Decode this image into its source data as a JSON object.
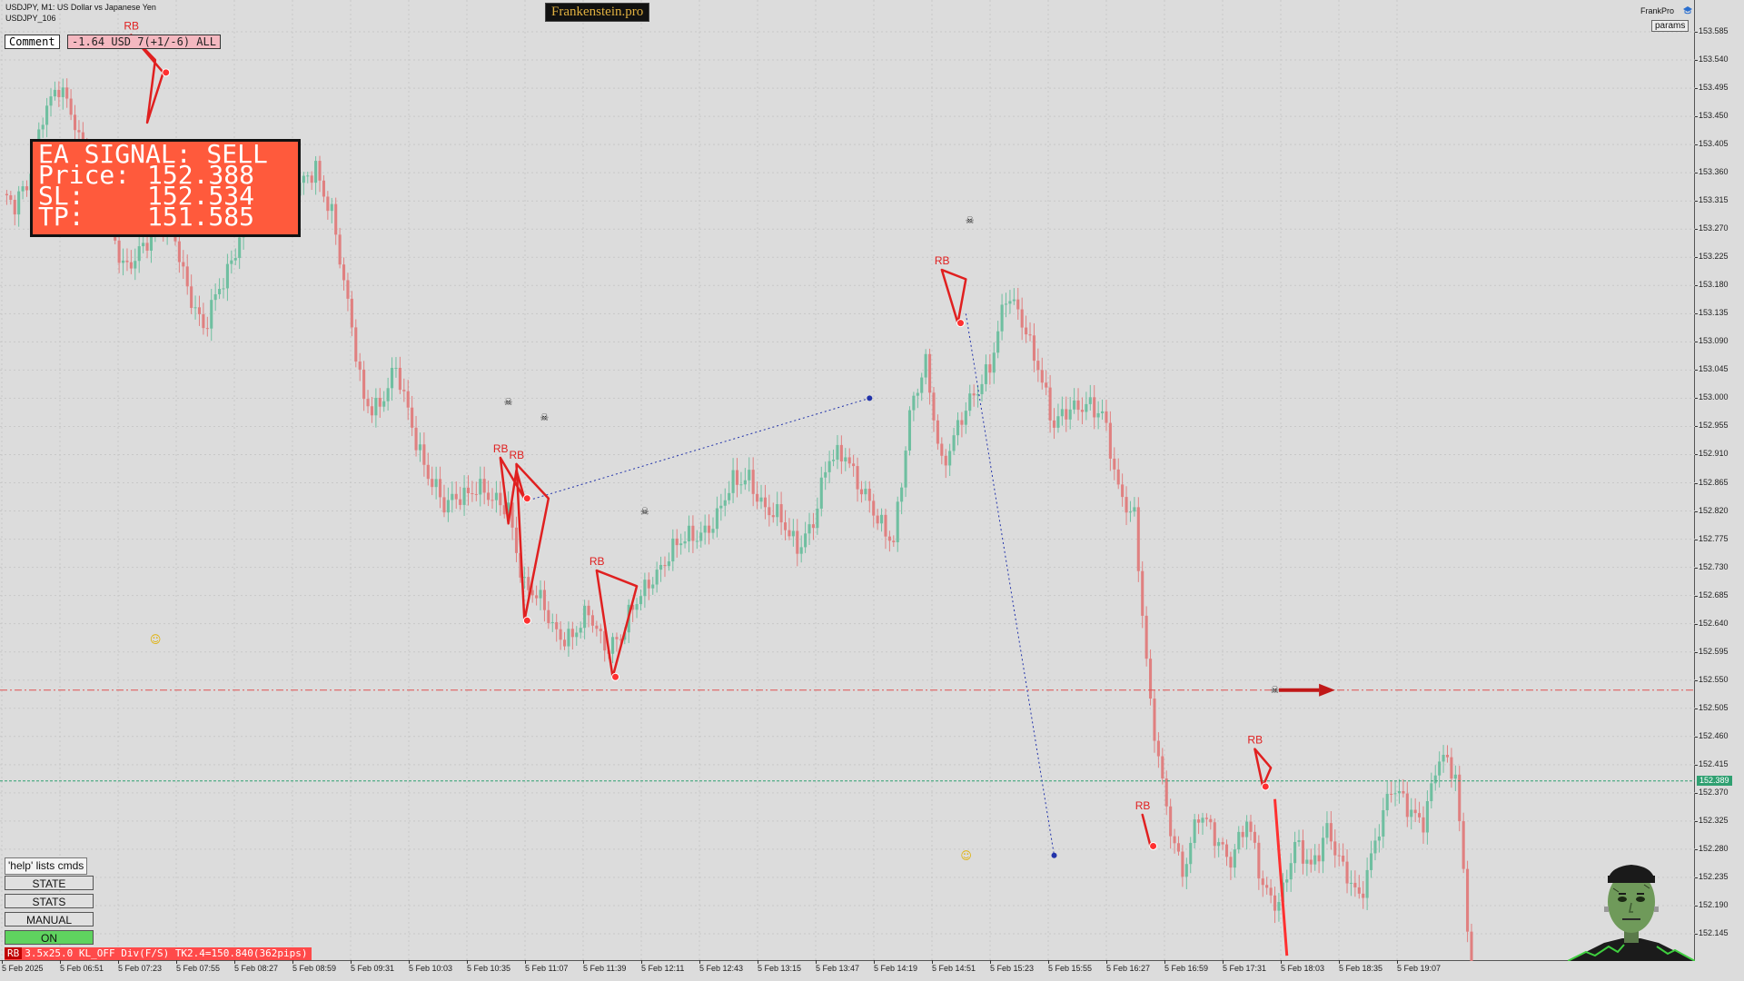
{
  "header": {
    "symbol_title": "USDJPY, M1:  US Dollar vs Japanese Yen",
    "symbol_sub": "USDJPY_106",
    "brand": "Frankenstein.pro"
  },
  "comment": {
    "label": "Comment",
    "value": "-1.64 USD 7(+1/-6) ALL"
  },
  "signal": {
    "title": "EA SIGNAL: SELL",
    "rows": [
      {
        "label": "Price:",
        "value": "152.388"
      },
      {
        "label": "SL:",
        "value": "152.534"
      },
      {
        "label": "TP:",
        "value": "151.585"
      }
    ]
  },
  "top_right": {
    "frankpro": "FrankPro",
    "params": "params"
  },
  "controls": {
    "help": "'help' lists cmds",
    "buttons": [
      {
        "label": "STATE",
        "state": "normal"
      },
      {
        "label": "STATS",
        "state": "normal"
      },
      {
        "label": "MANUAL",
        "state": "normal"
      },
      {
        "label": "ON",
        "state": "active"
      }
    ]
  },
  "status_bar": {
    "tag": "RB",
    "text": "3.5x25.0 KL_OFF Div(F/S) TK2.4=150.840(362pips)"
  },
  "price_axis": {
    "ticks": [
      "153.585",
      "153.540",
      "153.495",
      "153.450",
      "153.405",
      "153.360",
      "153.315",
      "153.270",
      "153.225",
      "153.180",
      "153.135",
      "153.090",
      "153.045",
      "153.000",
      "152.955",
      "152.910",
      "152.865",
      "152.820",
      "152.775",
      "152.730",
      "152.685",
      "152.640",
      "152.595",
      "152.550",
      "152.505",
      "152.460",
      "152.415",
      "152.370",
      "152.325",
      "152.280",
      "152.235",
      "152.190",
      "152.145"
    ],
    "current_price": "152.389"
  },
  "time_axis": {
    "ticks": [
      "5 Feb 2025",
      "5 Feb 06:51",
      "5 Feb 07:23",
      "5 Feb 07:55",
      "5 Feb 08:27",
      "5 Feb 08:59",
      "5 Feb 09:31",
      "5 Feb 10:03",
      "5 Feb 10:35",
      "5 Feb 11:07",
      "5 Feb 11:39",
      "5 Feb 12:11",
      "5 Feb 12:43",
      "5 Feb 13:15",
      "5 Feb 13:47",
      "5 Feb 14:19",
      "5 Feb 14:51",
      "5 Feb 15:23",
      "5 Feb 15:55",
      "5 Feb 16:27",
      "5 Feb 16:59",
      "5 Feb 17:31",
      "5 Feb 18:03",
      "5 Feb 18:35",
      "5 Feb 19:07"
    ]
  },
  "chart_data": {
    "type": "candlestick",
    "symbol": "USDJPY",
    "timeframe": "M1",
    "ylim": [
      152.12,
      153.59
    ],
    "grid": true,
    "close_anchors": [
      [
        0,
        153.32
      ],
      [
        3,
        153.3
      ],
      [
        6,
        153.34
      ],
      [
        10,
        153.46
      ],
      [
        14,
        153.49
      ],
      [
        18,
        153.44
      ],
      [
        22,
        153.36
      ],
      [
        26,
        153.28
      ],
      [
        30,
        153.21
      ],
      [
        34,
        153.24
      ],
      [
        38,
        153.26
      ],
      [
        42,
        153.29
      ],
      [
        46,
        153.18
      ],
      [
        50,
        153.1
      ],
      [
        54,
        153.18
      ],
      [
        58,
        153.24
      ],
      [
        62,
        153.32
      ],
      [
        66,
        153.36
      ],
      [
        70,
        153.33
      ],
      [
        74,
        153.33
      ],
      [
        78,
        153.37
      ],
      [
        82,
        153.3
      ],
      [
        86,
        153.14
      ],
      [
        90,
        153.0
      ],
      [
        94,
        152.99
      ],
      [
        98,
        153.04
      ],
      [
        102,
        152.96
      ],
      [
        106,
        152.88
      ],
      [
        110,
        152.82
      ],
      [
        114,
        152.85
      ],
      [
        118,
        152.86
      ],
      [
        122,
        152.83
      ],
      [
        126,
        152.83
      ],
      [
        130,
        152.7
      ],
      [
        134,
        152.67
      ],
      [
        138,
        152.63
      ],
      [
        142,
        152.62
      ],
      [
        146,
        152.65
      ],
      [
        150,
        152.61
      ],
      [
        154,
        152.62
      ],
      [
        158,
        152.67
      ],
      [
        162,
        152.72
      ],
      [
        166,
        152.75
      ],
      [
        170,
        152.77
      ],
      [
        174,
        152.79
      ],
      [
        178,
        152.81
      ],
      [
        182,
        152.86
      ],
      [
        186,
        152.88
      ],
      [
        190,
        152.82
      ],
      [
        194,
        152.8
      ],
      [
        198,
        152.77
      ],
      [
        202,
        152.8
      ],
      [
        206,
        152.9
      ],
      [
        210,
        152.92
      ],
      [
        214,
        152.85
      ],
      [
        218,
        152.8
      ],
      [
        222,
        152.78
      ],
      [
        226,
        152.97
      ],
      [
        230,
        153.05
      ],
      [
        234,
        152.9
      ],
      [
        238,
        152.95
      ],
      [
        242,
        153.0
      ],
      [
        246,
        153.06
      ],
      [
        250,
        153.16
      ],
      [
        254,
        153.12
      ],
      [
        258,
        153.06
      ],
      [
        262,
        152.95
      ],
      [
        266,
        152.98
      ],
      [
        270,
        153.0
      ],
      [
        274,
        152.97
      ],
      [
        278,
        152.85
      ],
      [
        282,
        152.82
      ],
      [
        286,
        152.5
      ],
      [
        290,
        152.34
      ],
      [
        294,
        152.25
      ],
      [
        298,
        152.33
      ],
      [
        302,
        152.3
      ],
      [
        306,
        152.27
      ],
      [
        310,
        152.32
      ],
      [
        314,
        152.22
      ],
      [
        318,
        152.2
      ],
      [
        322,
        152.28
      ],
      [
        326,
        152.25
      ],
      [
        330,
        152.32
      ],
      [
        334,
        152.24
      ],
      [
        338,
        152.2
      ],
      [
        342,
        152.3
      ],
      [
        346,
        152.37
      ],
      [
        350,
        152.35
      ],
      [
        354,
        152.33
      ],
      [
        358,
        152.42
      ],
      [
        362,
        152.4
      ],
      [
        366,
        152.1
      ]
    ],
    "levels": [
      {
        "name": "sell-level",
        "price": 152.534,
        "style": "dash-dot",
        "color": "#e05050"
      },
      {
        "name": "current-price-line",
        "price": 152.389,
        "style": "dashed",
        "color": "#2fa071"
      }
    ],
    "rb_patterns": [
      {
        "label": "RB",
        "points": [
          [
            32,
            153.58
          ],
          [
            38,
            153.54
          ],
          [
            36,
            153.44
          ],
          [
            40,
            153.52
          ]
        ]
      },
      {
        "label": "RB",
        "points": [
          [
            124,
            152.905
          ],
          [
            126,
            152.8
          ],
          [
            128,
            152.885
          ],
          [
            130,
            152.84
          ]
        ]
      },
      {
        "label": "RB",
        "points": [
          [
            128,
            152.895
          ],
          [
            136,
            152.84
          ],
          [
            130,
            152.645
          ]
        ]
      },
      {
        "label": "RB",
        "points": [
          [
            148,
            152.725
          ],
          [
            158,
            152.7
          ],
          [
            152,
            152.555
          ]
        ]
      },
      {
        "label": "RB",
        "points": [
          [
            234,
            153.205
          ],
          [
            240,
            153.19
          ],
          [
            238,
            153.12
          ]
        ]
      },
      {
        "label": "RB",
        "points": [
          [
            284,
            152.335
          ],
          [
            286,
            152.285
          ]
        ]
      },
      {
        "label": "RB",
        "points": [
          [
            312,
            152.44
          ],
          [
            316,
            152.41
          ],
          [
            314,
            152.38
          ]
        ]
      }
    ],
    "trade_connectors": [
      {
        "from": [
          130,
          152.835
        ],
        "to": [
          216,
          153.0
        ],
        "color": "#2233aa"
      },
      {
        "from": [
          240,
          153.135
        ],
        "to": [
          262,
          152.27
        ],
        "color": "#2233aa"
      }
    ],
    "colors": {
      "bull": "#6fbfa0",
      "bear": "#e08080",
      "pattern": "#e02020",
      "arrow": "#c01818",
      "level": "#e05050"
    }
  },
  "colors": {
    "accent": "#ff5a3c",
    "background": "#dcdcdc"
  }
}
